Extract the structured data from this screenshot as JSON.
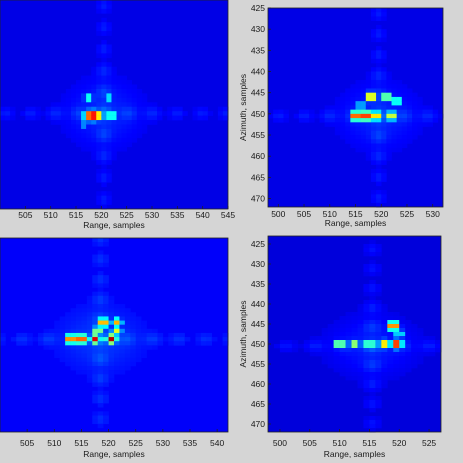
{
  "chart_data": [
    {
      "type": "heatmap",
      "panel": "top-left",
      "xlabel": "Range, samples",
      "ylabel": "",
      "xticks": [
        505,
        510,
        515,
        520,
        525,
        530,
        535,
        540,
        545
      ],
      "yticks": [],
      "xlim": [
        500,
        545
      ],
      "ylim": [
        472,
        425
      ],
      "background_level": 0.1,
      "center": [
        520,
        450
      ],
      "blobs": [
        {
          "x": 518.5,
          "y": 451,
          "v": 1.0
        },
        {
          "x": 517.5,
          "y": 451,
          "v": 0.9
        },
        {
          "x": 519.5,
          "y": 451,
          "v": 0.75
        },
        {
          "x": 522,
          "y": 451,
          "v": 0.55
        },
        {
          "x": 517.5,
          "y": 447,
          "v": 0.45
        },
        {
          "x": 521.5,
          "y": 447,
          "v": 0.4
        },
        {
          "x": 516.5,
          "y": 453,
          "v": 0.3
        }
      ]
    },
    {
      "type": "heatmap",
      "panel": "top-right",
      "xlabel": "Range, samples",
      "ylabel": "Azimuth, samples",
      "xticks": [
        500,
        505,
        510,
        515,
        520,
        525,
        530
      ],
      "yticks": [
        425,
        430,
        435,
        440,
        445,
        450,
        455,
        460,
        465,
        470
      ],
      "xlim": [
        498,
        532
      ],
      "ylim": [
        472,
        425
      ],
      "background_level": 0.1,
      "center": [
        519,
        450
      ],
      "blobs": [
        {
          "x": 515,
          "y": 450.5,
          "v": 0.95
        },
        {
          "x": 517,
          "y": 450.5,
          "v": 1.0
        },
        {
          "x": 519,
          "y": 450.5,
          "v": 0.8
        },
        {
          "x": 522,
          "y": 450.5,
          "v": 0.7
        },
        {
          "x": 518,
          "y": 446,
          "v": 0.85
        },
        {
          "x": 521,
          "y": 446,
          "v": 0.65
        },
        {
          "x": 523,
          "y": 447,
          "v": 0.55
        },
        {
          "x": 516,
          "y": 448,
          "v": 0.4
        }
      ]
    },
    {
      "type": "heatmap",
      "panel": "bottom-left",
      "xlabel": "Range, samples",
      "ylabel": "",
      "xticks": [
        505,
        510,
        515,
        520,
        525,
        530,
        535,
        540
      ],
      "yticks": [],
      "xlim": [
        500,
        542
      ],
      "ylim": [
        472,
        425
      ],
      "background_level": 0.12,
      "center": [
        518,
        449
      ],
      "blobs": [
        {
          "x": 513,
          "y": 449.5,
          "v": 0.9
        },
        {
          "x": 515,
          "y": 449.5,
          "v": 0.95
        },
        {
          "x": 517.5,
          "y": 449.5,
          "v": 0.9
        },
        {
          "x": 520.5,
          "y": 449.5,
          "v": 0.95
        },
        {
          "x": 519,
          "y": 445.5,
          "v": 0.85
        },
        {
          "x": 521.5,
          "y": 445.5,
          "v": 0.7
        },
        {
          "x": 518,
          "y": 447.5,
          "v": 0.6
        },
        {
          "x": 521.5,
          "y": 447.5,
          "v": 0.6
        }
      ]
    },
    {
      "type": "heatmap",
      "panel": "bottom-right",
      "xlabel": "Range, samples",
      "ylabel": "Azimuth, samples",
      "xticks": [
        500,
        505,
        510,
        515,
        520,
        525
      ],
      "yticks": [
        425,
        430,
        435,
        440,
        445,
        450,
        455,
        460,
        465,
        470
      ],
      "xlim": [
        498,
        527
      ],
      "ylim": [
        472,
        423
      ],
      "background_level": 0.09,
      "center": [
        515,
        450
      ],
      "blobs": [
        {
          "x": 510,
          "y": 450,
          "v": 0.65
        },
        {
          "x": 512.5,
          "y": 450,
          "v": 0.6
        },
        {
          "x": 515,
          "y": 450,
          "v": 0.6
        },
        {
          "x": 517.5,
          "y": 450,
          "v": 0.75
        },
        {
          "x": 519.5,
          "y": 450,
          "v": 0.95
        },
        {
          "x": 519,
          "y": 445.5,
          "v": 0.9
        },
        {
          "x": 520,
          "y": 447.5,
          "v": 0.4
        }
      ]
    }
  ]
}
